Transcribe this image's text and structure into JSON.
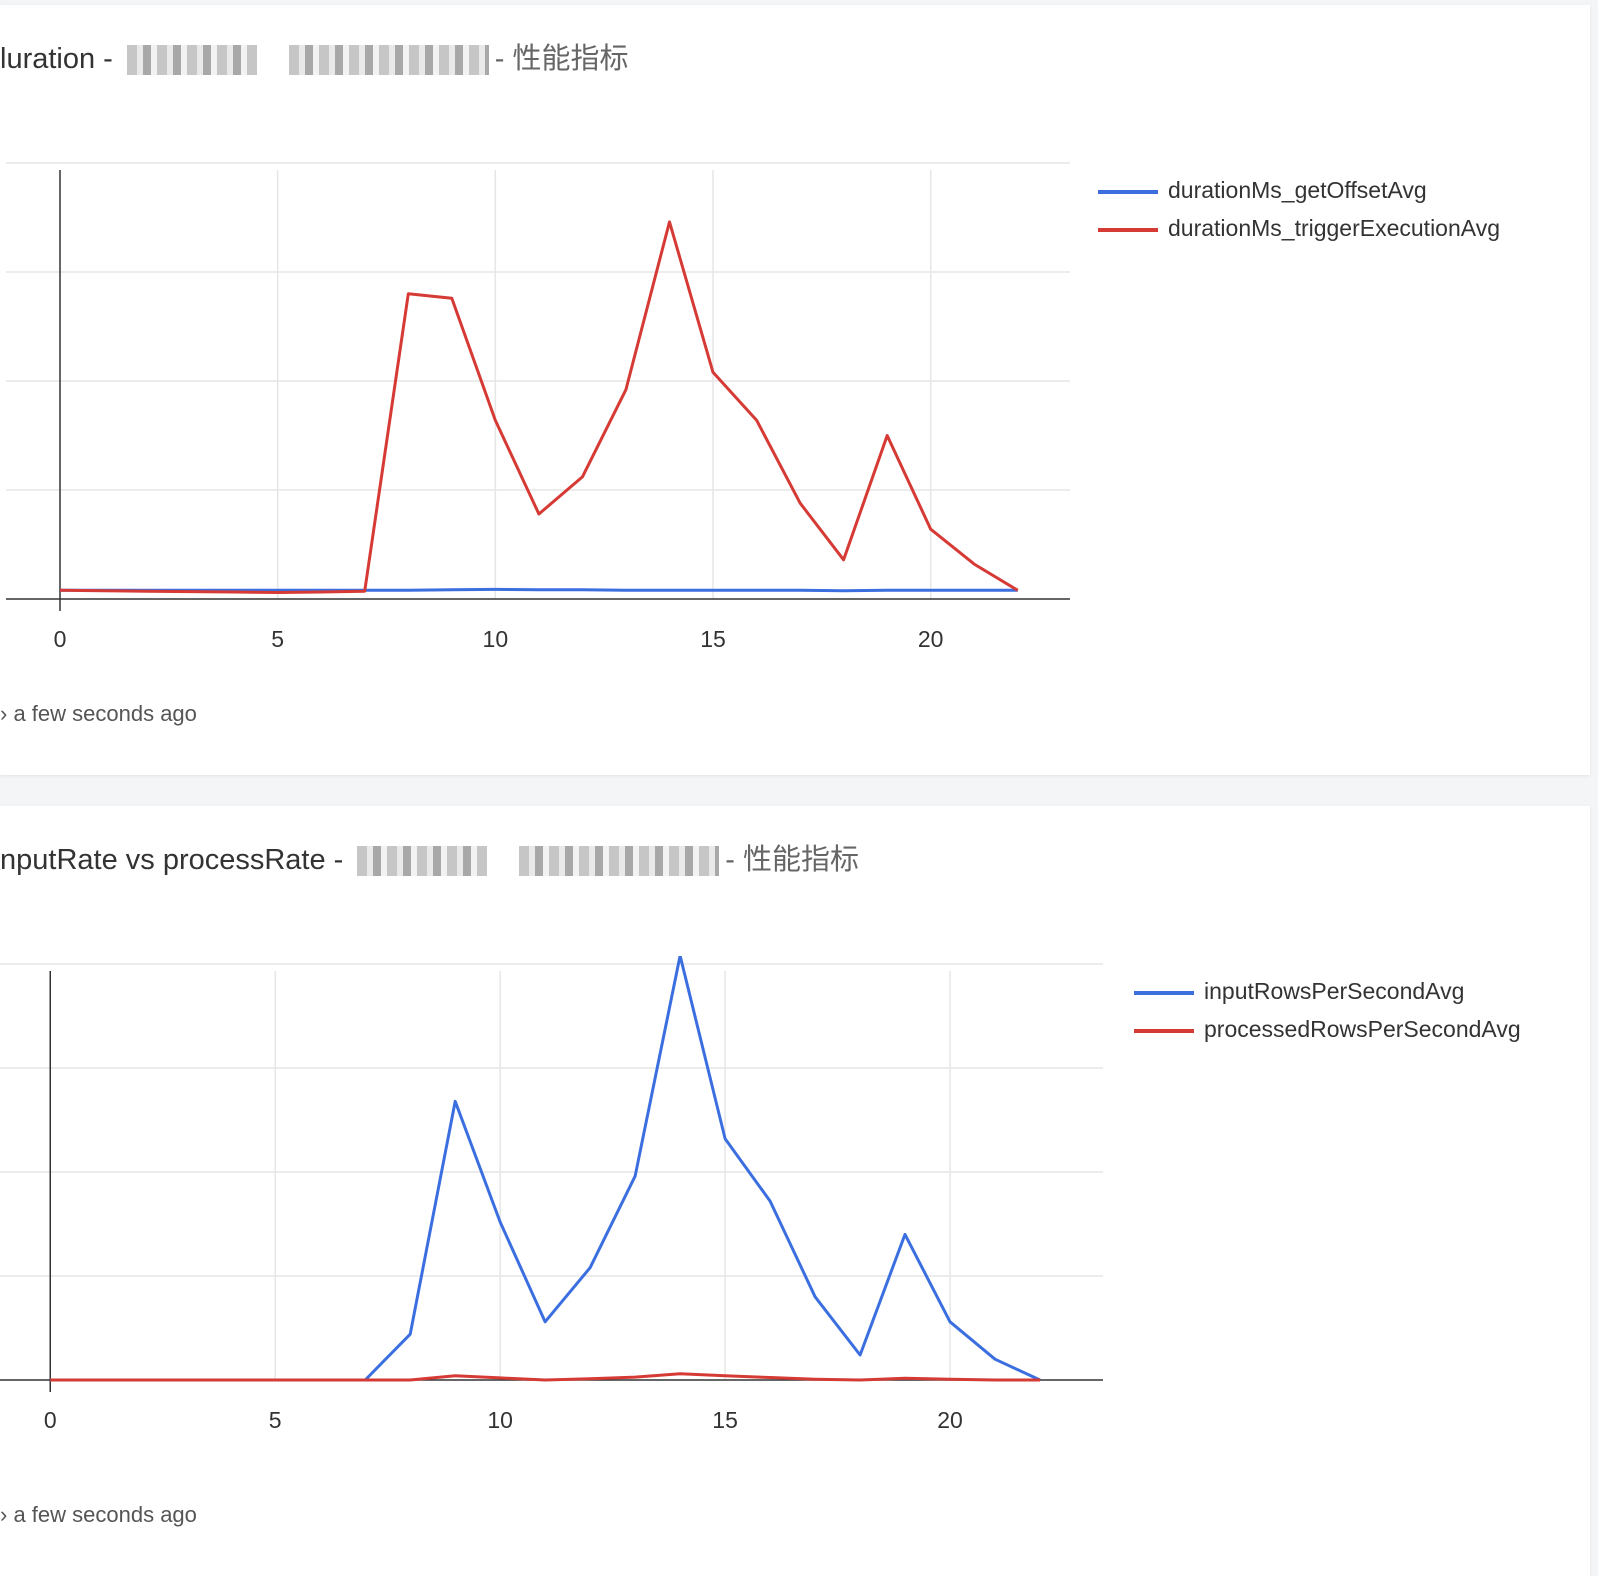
{
  "cards": [
    {
      "title_main": "luration",
      "separator": "-",
      "title_suffix": "- 性能指标",
      "footer": "› a few seconds ago",
      "chart_data": {
        "type": "line",
        "xlim": [
          0,
          23.2
        ],
        "ylim": [
          0,
          100
        ],
        "xticks": [
          0,
          5,
          10,
          15,
          20
        ],
        "grid": true,
        "legend_position": "right",
        "series": [
          {
            "name": "durationMs_getOffsetAvg",
            "color": "#3b6fe0",
            "x": [
              0,
              1,
              2,
              3,
              4,
              5,
              6,
              7,
              8,
              9,
              10,
              11,
              12,
              13,
              14,
              15,
              16,
              17,
              18,
              19,
              20,
              21,
              22
            ],
            "y": [
              2,
              2,
              2,
              2,
              2,
              2,
              2,
              2,
              2,
              2.1,
              2.2,
              2.1,
              2.1,
              2,
              2,
              2,
              2,
              2,
              1.9,
              2,
              2,
              2,
              2
            ]
          },
          {
            "name": "durationMs_triggerExecutionAvg",
            "color": "#d63a35",
            "x": [
              0,
              1,
              2,
              3,
              4,
              5,
              6,
              7,
              8,
              9,
              10,
              11,
              12,
              13,
              14,
              15,
              16,
              17,
              18,
              19,
              20,
              21,
              22
            ],
            "y": [
              2,
              1.9,
              1.8,
              1.7,
              1.6,
              1.5,
              1.6,
              1.8,
              70,
              69,
              41,
              19.5,
              28,
              48,
              86.5,
              52,
              41,
              22,
              9,
              37.5,
              16,
              8,
              2
            ]
          }
        ]
      }
    },
    {
      "title_main": "nputRate vs processRate",
      "separator": "-",
      "title_suffix": "- 性能指标",
      "footer": "› a few seconds ago",
      "chart_data": {
        "type": "line",
        "xlim": [
          -0.05,
          23.4
        ],
        "ylim": [
          0,
          100
        ],
        "xticks": [
          0,
          5,
          10,
          15,
          20
        ],
        "grid": true,
        "legend_position": "right",
        "series": [
          {
            "name": "inputRowsPerSecondAvg",
            "color": "#3b6fe0",
            "x": [
              0,
              1,
              2,
              3,
              4,
              5,
              6,
              7,
              8,
              9,
              10,
              11,
              12,
              13,
              14,
              15,
              16,
              17,
              18,
              19,
              20,
              21,
              22
            ],
            "y": [
              0,
              0,
              0,
              0,
              0,
              0,
              0,
              0,
              11,
              67,
              38,
              14,
              27,
              49,
              102,
              58,
              43,
              20,
              6,
              35,
              14,
              5,
              0
            ]
          },
          {
            "name": "processedRowsPerSecondAvg",
            "color": "#d63a35",
            "x": [
              0,
              1,
              2,
              3,
              4,
              5,
              6,
              7,
              8,
              9,
              10,
              11,
              12,
              13,
              14,
              15,
              16,
              17,
              18,
              19,
              20,
              21,
              22
            ],
            "y": [
              0,
              0,
              0,
              0,
              0,
              0,
              0,
              0,
              0,
              1,
              0.5,
              0,
              0.3,
              0.7,
              1.5,
              1,
              0.6,
              0.2,
              0,
              0.4,
              0.2,
              0,
              0
            ]
          }
        ]
      }
    }
  ]
}
